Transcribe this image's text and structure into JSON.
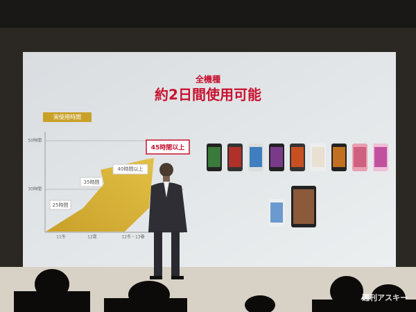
{
  "slide": {
    "subtitle": "全機種",
    "title": "約2日間使用可能",
    "chart": {
      "label": "実使用時間",
      "axis": [
        "50時間",
        "30時間"
      ],
      "periods": [
        "11冬",
        "12夏",
        "12冬・13春"
      ],
      "callouts": [
        "25時間",
        "35時間",
        "40時間以上",
        "45時間以上"
      ]
    }
  },
  "watermark": "週刊アスキー"
}
